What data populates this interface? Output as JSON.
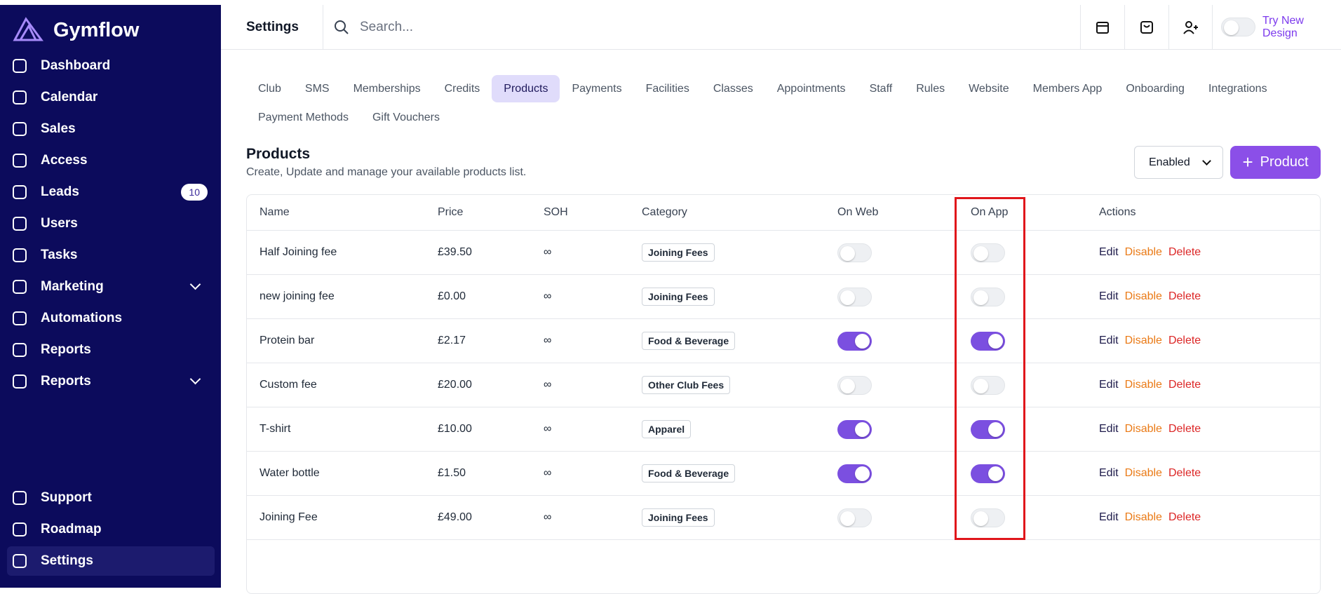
{
  "sidebar": {
    "brand": "Gymflow",
    "nav": [
      {
        "label": "Dashboard"
      },
      {
        "label": "Calendar"
      },
      {
        "label": "Sales"
      },
      {
        "label": "Access"
      },
      {
        "label": "Leads",
        "badge": "10"
      },
      {
        "label": "Users"
      },
      {
        "label": "Tasks"
      },
      {
        "label": "Marketing",
        "expandable": true
      },
      {
        "label": "Automations"
      },
      {
        "label": "Reports"
      },
      {
        "label": "Reports",
        "expandable": true
      }
    ],
    "bottom_nav": [
      {
        "label": "Support"
      },
      {
        "label": "Roadmap"
      },
      {
        "label": "Settings",
        "active": true
      }
    ]
  },
  "header": {
    "title": "Settings",
    "search_placeholder": "Search...",
    "try_new_design": "Try New Design"
  },
  "tabs": [
    {
      "label": "Club"
    },
    {
      "label": "SMS"
    },
    {
      "label": "Memberships"
    },
    {
      "label": "Credits"
    },
    {
      "label": "Products",
      "active": true
    },
    {
      "label": "Payments"
    },
    {
      "label": "Facilities"
    },
    {
      "label": "Classes"
    },
    {
      "label": "Appointments"
    },
    {
      "label": "Staff"
    },
    {
      "label": "Rules"
    },
    {
      "label": "Website"
    },
    {
      "label": "Members App"
    },
    {
      "label": "Onboarding"
    },
    {
      "label": "Integrations"
    },
    {
      "label": "Payment Methods"
    },
    {
      "label": "Gift Vouchers"
    }
  ],
  "section": {
    "title": "Products",
    "subtitle": "Create, Update and manage your available products list.",
    "filter": "Enabled",
    "add_button": "Product"
  },
  "table": {
    "columns": [
      "Name",
      "Price",
      "SOH",
      "Category",
      "On Web",
      "On App",
      "Actions"
    ],
    "actions": [
      "Edit",
      "Disable",
      "Delete"
    ],
    "rows": [
      {
        "name": "Half Joining fee",
        "price": "£39.50",
        "soh": "∞",
        "category": "Joining Fees",
        "on_web": false,
        "on_app": false
      },
      {
        "name": "new joining fee",
        "price": "£0.00",
        "soh": "∞",
        "category": "Joining Fees",
        "on_web": false,
        "on_app": false
      },
      {
        "name": "Protein bar",
        "price": "£2.17",
        "soh": "∞",
        "category": "Food & Beverage",
        "on_web": true,
        "on_app": true
      },
      {
        "name": "Custom fee",
        "price": "£20.00",
        "soh": "∞",
        "category": "Other Club Fees",
        "on_web": false,
        "on_app": false
      },
      {
        "name": "T-shirt",
        "price": "£10.00",
        "soh": "∞",
        "category": "Apparel",
        "on_web": true,
        "on_app": true
      },
      {
        "name": "Water bottle",
        "price": "£1.50",
        "soh": "∞",
        "category": "Food & Beverage",
        "on_web": true,
        "on_app": true
      },
      {
        "name": "Joining Fee",
        "price": "£49.00",
        "soh": "∞",
        "category": "Joining Fees",
        "on_web": false,
        "on_app": false
      }
    ]
  }
}
